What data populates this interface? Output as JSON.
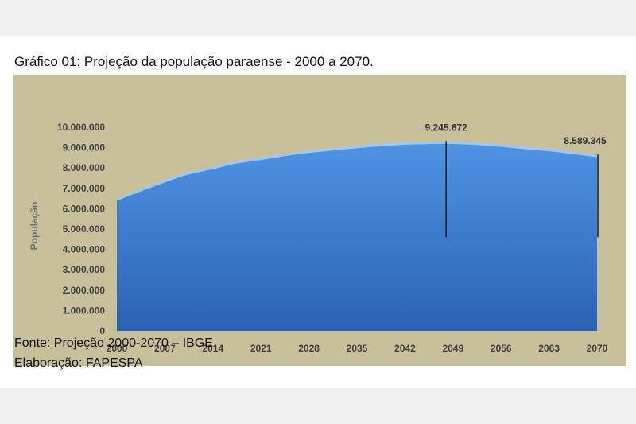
{
  "figure": {
    "title": "Gráfico 01: Projeção da população paraense - 2000 a 2070.",
    "source": "Fonte: Projeção 2000-2070 – IBGE.",
    "credit": "Elaboração: FAPESPA"
  },
  "colors": {
    "plot_background": "#c8bf9b",
    "area_top": "#4f93e3",
    "area_bottom": "#2a62b4",
    "area_edge": "#9cc8f5"
  },
  "chart_data": {
    "type": "area",
    "title": "",
    "xlabel": "",
    "ylabel": "População",
    "x_tick_labels": [
      "2000",
      "2007",
      "2014",
      "2021",
      "2028",
      "2035",
      "2042",
      "2049",
      "2056",
      "2063",
      "2070"
    ],
    "y_tick_labels": [
      "0",
      "1.000.000",
      "2.000.000",
      "3.000.000",
      "4.000.000",
      "5.000.000",
      "6.000.000",
      "7.000.000",
      "8.000.000",
      "9.000.000",
      "10.000.000"
    ],
    "xlim": [
      2000,
      2070
    ],
    "ylim": [
      0,
      10000000
    ],
    "grid": false,
    "series": [
      {
        "x": [
          2000,
          2003,
          2007,
          2010,
          2014,
          2017,
          2021,
          2024,
          2028,
          2031,
          2035,
          2038,
          2042,
          2045,
          2048,
          2049,
          2052,
          2056,
          2059,
          2063,
          2066,
          2070
        ],
        "values": [
          6450000,
          6850000,
          7350000,
          7700000,
          8000000,
          8250000,
          8450000,
          8620000,
          8800000,
          8900000,
          9030000,
          9110000,
          9200000,
          9230000,
          9245672,
          9240000,
          9200000,
          9100000,
          9000000,
          8880000,
          8760000,
          8589345
        ]
      }
    ],
    "annotations": [
      {
        "x": 2048,
        "y": 9245672,
        "label": "9.245.672"
      },
      {
        "x": 2070,
        "y": 8589345,
        "label": "8.589.345"
      }
    ]
  }
}
